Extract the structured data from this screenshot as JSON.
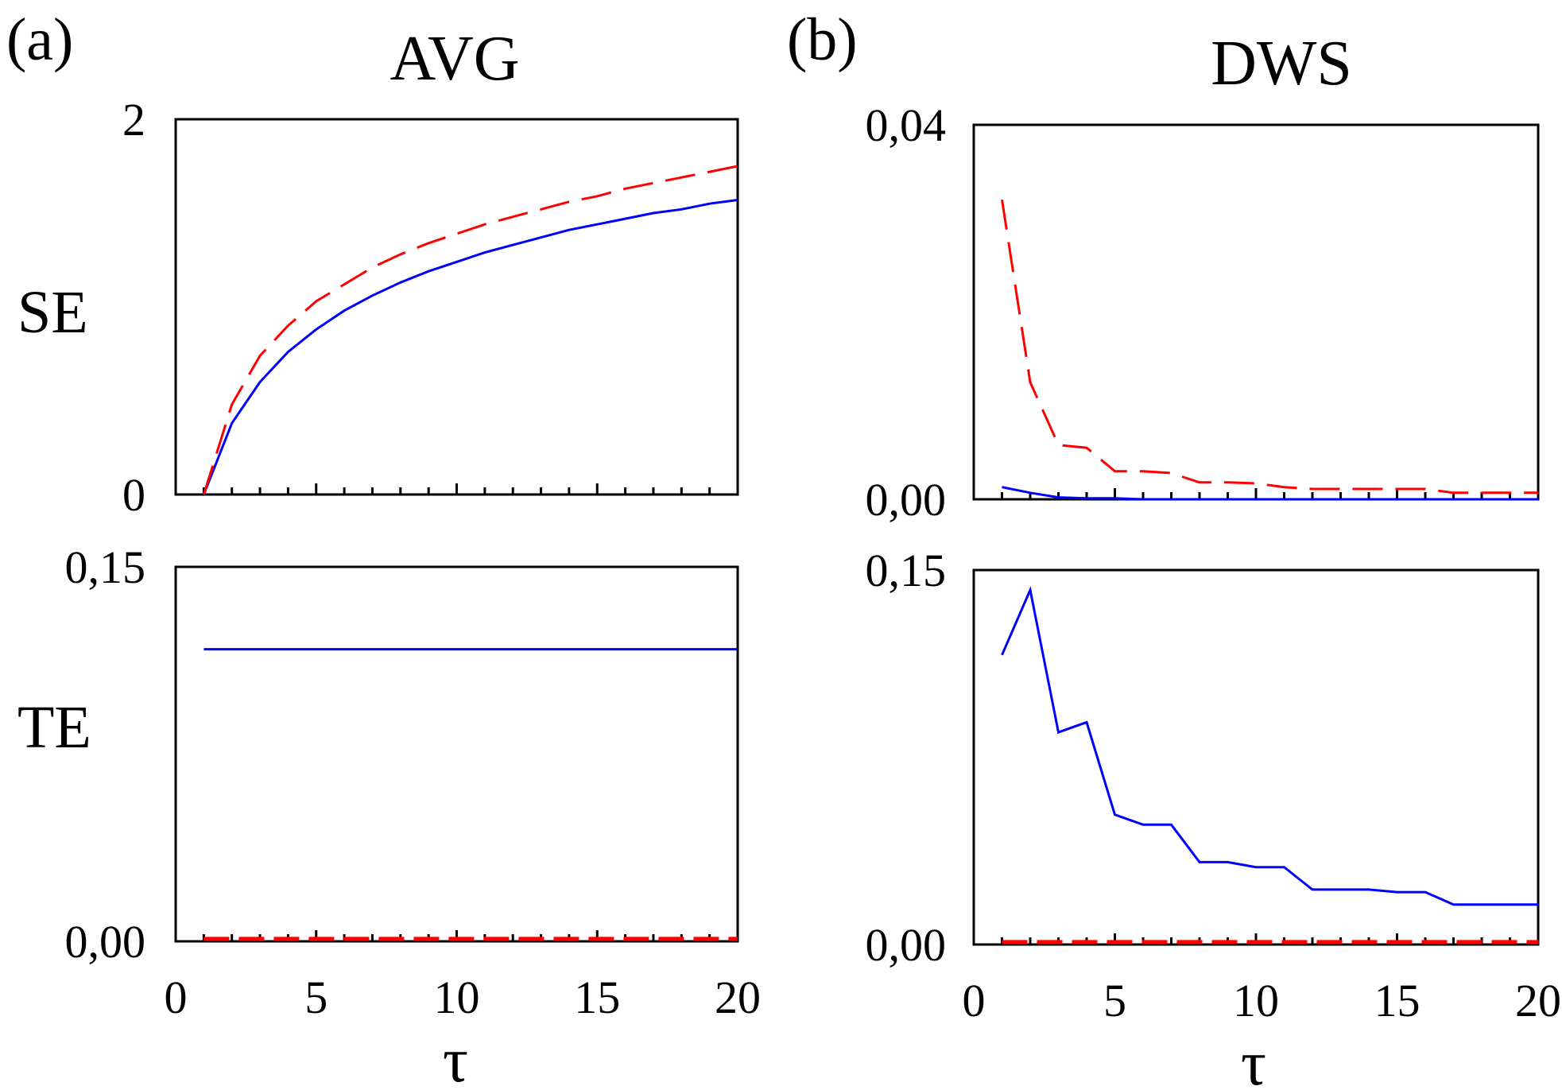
{
  "figure": {
    "panel_a_tag": "(a)",
    "panel_b_tag": "(b)",
    "col_a_title": "AVG",
    "col_b_title": "DWS",
    "row_top_label": "SE",
    "row_bottom_label": "TE",
    "x_axis_label": "τ"
  },
  "colors": {
    "series_solid": "#0000ff",
    "series_dashed": "#ff0000",
    "axis": "#000000"
  },
  "chart_data": [
    {
      "id": "avg-se",
      "type": "line",
      "title": "AVG",
      "row": "SE",
      "xlim": [
        0,
        20
      ],
      "ylim": [
        0,
        2
      ],
      "ytick_labels": [
        "0",
        "2"
      ],
      "xtick_labels": [],
      "series": [
        {
          "name": "solid",
          "style": "solid",
          "x": [
            1,
            2,
            3,
            4,
            5,
            6,
            7,
            8,
            9,
            10,
            11,
            12,
            13,
            14,
            15,
            16,
            17,
            18,
            19,
            20
          ],
          "values": [
            0.0,
            0.38,
            0.6,
            0.76,
            0.88,
            0.98,
            1.06,
            1.13,
            1.19,
            1.24,
            1.29,
            1.33,
            1.37,
            1.41,
            1.44,
            1.47,
            1.5,
            1.52,
            1.55,
            1.57
          ]
        },
        {
          "name": "dashed",
          "style": "dashed",
          "x": [
            1,
            2,
            3,
            4,
            5,
            6,
            7,
            8,
            9,
            10,
            11,
            12,
            13,
            14,
            15,
            16,
            17,
            18,
            19,
            20
          ],
          "values": [
            0.0,
            0.48,
            0.74,
            0.9,
            1.03,
            1.12,
            1.21,
            1.28,
            1.34,
            1.39,
            1.44,
            1.48,
            1.52,
            1.56,
            1.59,
            1.63,
            1.66,
            1.69,
            1.72,
            1.75
          ]
        }
      ]
    },
    {
      "id": "dws-se",
      "type": "line",
      "title": "DWS",
      "row": "SE",
      "xlim": [
        0,
        20
      ],
      "ylim": [
        0,
        0.04
      ],
      "ytick_labels": [
        "0,00",
        "0,04"
      ],
      "xtick_labels": [],
      "series": [
        {
          "name": "solid",
          "style": "solid",
          "x": [
            1,
            2,
            3,
            4,
            5,
            6,
            7,
            8,
            9,
            10,
            11,
            12,
            13,
            14,
            15,
            16,
            17,
            18,
            19,
            20
          ],
          "values": [
            0.0013,
            0.0007,
            0.0002,
            0.0001,
            0.0001,
            0,
            0,
            0,
            0,
            0,
            0,
            0,
            0,
            0,
            0,
            0,
            0,
            0,
            0,
            0
          ]
        },
        {
          "name": "dashed",
          "style": "dashed",
          "x": [
            1,
            2,
            3,
            4,
            5,
            6,
            7,
            8,
            9,
            10,
            11,
            12,
            13,
            14,
            15,
            16,
            17,
            18,
            19,
            20
          ],
          "values": [
            0.032,
            0.0125,
            0.0058,
            0.0055,
            0.003,
            0.003,
            0.0028,
            0.0018,
            0.0018,
            0.0017,
            0.0013,
            0.0011,
            0.0011,
            0.0011,
            0.0011,
            0.0011,
            0.0007,
            0.0007,
            0.0007,
            0.0007
          ]
        }
      ]
    },
    {
      "id": "avg-te",
      "type": "line",
      "title": "",
      "row": "TE",
      "xlim": [
        0,
        20
      ],
      "ylim": [
        0,
        0.15
      ],
      "ytick_labels": [
        "0,00",
        "0,15"
      ],
      "xtick_labels": [
        "0",
        "5",
        "10",
        "15",
        "20"
      ],
      "xlabel": "τ",
      "series": [
        {
          "name": "solid",
          "style": "solid",
          "x": [
            1,
            20
          ],
          "values": [
            0.117,
            0.117
          ]
        },
        {
          "name": "dashed",
          "style": "dashed",
          "x": [
            1,
            20
          ],
          "values": [
            0.001,
            0.001
          ]
        }
      ]
    },
    {
      "id": "dws-te",
      "type": "line",
      "title": "",
      "row": "TE",
      "xlim": [
        0,
        20
      ],
      "ylim": [
        0,
        0.15
      ],
      "ytick_labels": [
        "0,00",
        "0,15"
      ],
      "xtick_labels": [
        "0",
        "5",
        "10",
        "15",
        "20"
      ],
      "xlabel": "τ",
      "series": [
        {
          "name": "solid",
          "style": "solid",
          "x": [
            1,
            2,
            3,
            4,
            5,
            6,
            7,
            8,
            9,
            10,
            11,
            12,
            13,
            14,
            15,
            16,
            17,
            18,
            19,
            20
          ],
          "values": [
            0.116,
            0.142,
            0.085,
            0.089,
            0.052,
            0.048,
            0.048,
            0.033,
            0.033,
            0.031,
            0.031,
            0.022,
            0.022,
            0.022,
            0.021,
            0.021,
            0.016,
            0.016,
            0.016,
            0.016
          ]
        },
        {
          "name": "dashed",
          "style": "dashed",
          "x": [
            1,
            20
          ],
          "values": [
            0.001,
            0.001
          ]
        }
      ]
    }
  ]
}
